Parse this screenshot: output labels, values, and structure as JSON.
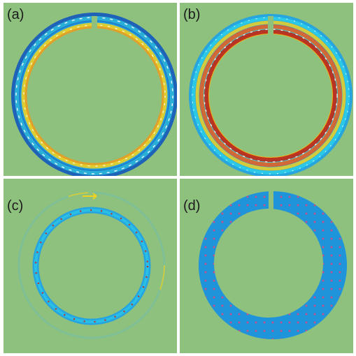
{
  "figure": {
    "background_color": "#8fc17e",
    "panels": [
      {
        "label": "(a)",
        "description_icon": "ring-field-map-icon"
      },
      {
        "label": "(b)",
        "description_icon": "ring-field-map-icon"
      },
      {
        "label": "(c)",
        "description_icon": "ring-field-map-icon"
      },
      {
        "label": "(d)",
        "description_icon": "ring-field-map-icon"
      }
    ],
    "colors": {
      "deep_blue": "#1f63b8",
      "blue": "#1fa2e6",
      "cyan": "#2fd0e6",
      "yellow": "#f1d21e",
      "orange": "#f07b18",
      "red": "#bf2b22",
      "white": "#ffffff",
      "pink": "#d94b79"
    }
  }
}
